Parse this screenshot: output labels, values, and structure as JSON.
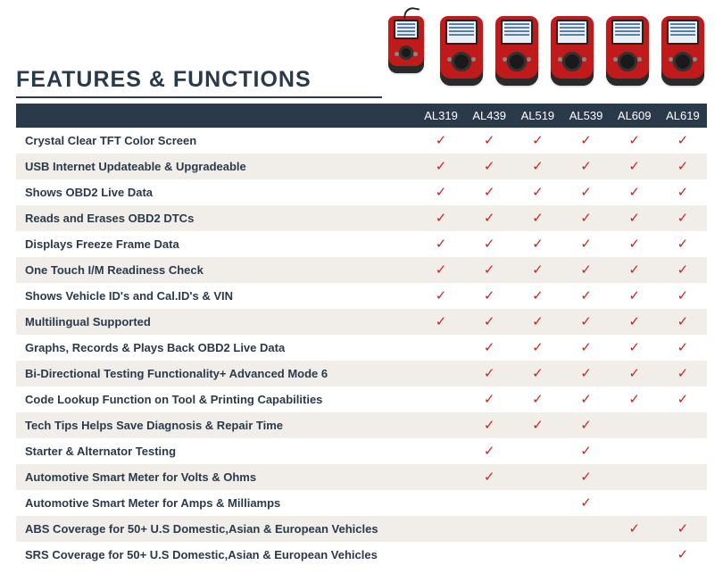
{
  "title": "FEATURES & FUNCTIONS",
  "title_color": "#2b3a4a",
  "underline_color": "#2b3a4a",
  "header_bg": "#2b3a4a",
  "header_fg": "#ffffff",
  "row_alt_bg": "#f1eee9",
  "row_bg": "#ffffff",
  "check_color": "#d02020",
  "check_glyph": "✓",
  "products": [
    "AL319",
    "AL439",
    "AL519",
    "AL539",
    "AL609",
    "AL619"
  ],
  "device_color": "#c11a1a",
  "features": [
    {
      "label": "Crystal Clear TFT Color Screen",
      "support": [
        1,
        1,
        1,
        1,
        1,
        1
      ]
    },
    {
      "label": "USB Internet Updateable & Upgradeable",
      "support": [
        1,
        1,
        1,
        1,
        1,
        1
      ]
    },
    {
      "label": "Shows OBD2 Live Data",
      "support": [
        1,
        1,
        1,
        1,
        1,
        1
      ]
    },
    {
      "label": "Reads and Erases OBD2 DTCs",
      "support": [
        1,
        1,
        1,
        1,
        1,
        1
      ]
    },
    {
      "label": "Displays Freeze Frame Data",
      "support": [
        1,
        1,
        1,
        1,
        1,
        1
      ]
    },
    {
      "label": "One Touch I/M Readiness Check",
      "support": [
        1,
        1,
        1,
        1,
        1,
        1
      ]
    },
    {
      "label": "Shows Vehicle ID's and Cal.ID's & VIN",
      "support": [
        1,
        1,
        1,
        1,
        1,
        1
      ]
    },
    {
      "label": "Multilingual Supported",
      "support": [
        1,
        1,
        1,
        1,
        1,
        1
      ]
    },
    {
      "label": "Graphs, Records & Plays Back OBD2 Live Data",
      "support": [
        0,
        1,
        1,
        1,
        1,
        1
      ]
    },
    {
      "label": "Bi-Directional Testing Functionality+ Advanced Mode 6",
      "support": [
        0,
        1,
        1,
        1,
        1,
        1
      ]
    },
    {
      "label": "Code Lookup Function on Tool & Printing Capabilities",
      "support": [
        0,
        1,
        1,
        1,
        1,
        1
      ]
    },
    {
      "label": "Tech Tips Helps Save Diagnosis & Repair Time",
      "support": [
        0,
        1,
        1,
        1,
        0,
        0
      ]
    },
    {
      "label": "Starter & Alternator Testing",
      "support": [
        0,
        1,
        0,
        1,
        0,
        0
      ]
    },
    {
      "label": "Automotive Smart Meter for Volts & Ohms",
      "support": [
        0,
        1,
        0,
        1,
        0,
        0
      ]
    },
    {
      "label": "Automotive Smart Meter for Amps & Milliamps",
      "support": [
        0,
        0,
        0,
        1,
        0,
        0
      ]
    },
    {
      "label": "ABS Coverage for 50+ U.S Domestic,Asian & European Vehicles",
      "support": [
        0,
        0,
        0,
        0,
        1,
        1
      ]
    },
    {
      "label": "SRS Coverage for 50+ U.S Domestic,Asian & European Vehicles",
      "support": [
        0,
        0,
        0,
        0,
        0,
        1
      ]
    }
  ]
}
